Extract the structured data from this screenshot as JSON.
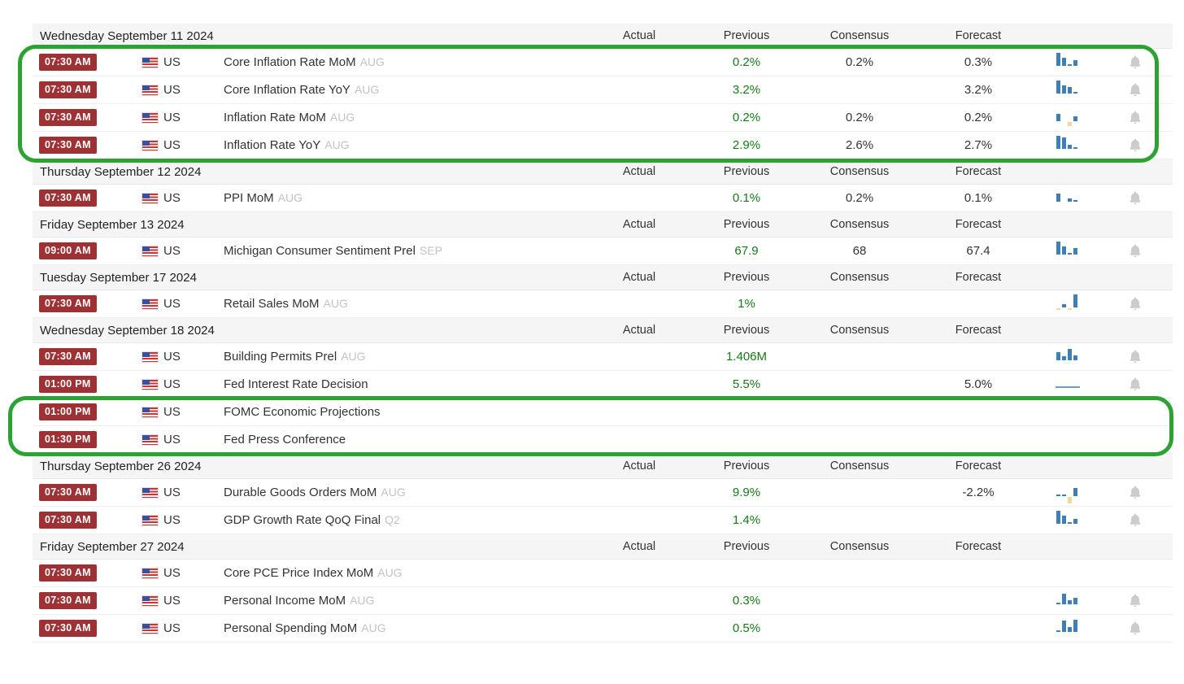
{
  "columns": {
    "actual": "Actual",
    "previous": "Previous",
    "consensus": "Consensus",
    "forecast": "Forecast"
  },
  "colors": {
    "badge_red": "#9e3134",
    "previous_green": "#157a15",
    "bar_blue": "#3e7fb8",
    "bar_yellow": "#f5d79e",
    "highlight_green": "#2ca233",
    "bell_gray": "#cccccc"
  },
  "icons": {
    "bell": "alert-bell-icon",
    "flag": "us-flag-icon",
    "spark": "history-sparkline-chart"
  },
  "groups": [
    {
      "date": "Wednesday September 11 2024",
      "events": [
        {
          "time": "07:30 AM",
          "country": "US",
          "name": "Core Inflation Rate MoM",
          "period": "AUG",
          "actual": "",
          "previous": "0.2%",
          "consensus": "0.2%",
          "forecast": "0.3%",
          "bell": true,
          "chart": [
            {
              "v": 1
            },
            {
              "v": 0.65
            },
            {
              "v": 0.15
            },
            {
              "v": 0.45
            }
          ]
        },
        {
          "time": "07:30 AM",
          "country": "US",
          "name": "Core Inflation Rate YoY",
          "period": "AUG",
          "actual": "",
          "previous": "3.2%",
          "consensus": "",
          "forecast": "3.2%",
          "bell": true,
          "chart": [
            {
              "v": 1
            },
            {
              "v": 0.6
            },
            {
              "v": 0.5
            },
            {
              "v": 0.15
            }
          ]
        },
        {
          "time": "07:30 AM",
          "country": "US",
          "name": "Inflation Rate MoM",
          "period": "AUG",
          "actual": "",
          "previous": "0.2%",
          "consensus": "0.2%",
          "forecast": "0.2%",
          "bell": true,
          "chart": [
            {
              "v": 0.55
            },
            {
              "v": 0
            },
            {
              "v": -0.3,
              "c": "y"
            },
            {
              "v": 0.35
            }
          ]
        },
        {
          "time": "07:30 AM",
          "country": "US",
          "name": "Inflation Rate YoY",
          "period": "AUG",
          "actual": "",
          "previous": "2.9%",
          "consensus": "2.6%",
          "forecast": "2.7%",
          "bell": true,
          "chart": [
            {
              "v": 1
            },
            {
              "v": 0.9
            },
            {
              "v": 0.3
            },
            {
              "v": 0.12
            }
          ]
        }
      ]
    },
    {
      "date": "Thursday September 12 2024",
      "events": [
        {
          "time": "07:30 AM",
          "country": "US",
          "name": "PPI MoM",
          "period": "AUG",
          "actual": "",
          "previous": "0.1%",
          "consensus": "0.2%",
          "forecast": "0.1%",
          "bell": true,
          "chart": [
            {
              "v": 0.6
            },
            {
              "v": 0
            },
            {
              "v": 0.22
            },
            {
              "v": 0.1
            }
          ]
        }
      ]
    },
    {
      "date": "Friday September 13 2024",
      "events": [
        {
          "time": "09:00 AM",
          "country": "US",
          "name": "Michigan Consumer Sentiment Prel",
          "period": "SEP",
          "actual": "",
          "previous": "67.9",
          "consensus": "68",
          "forecast": "67.4",
          "bell": true,
          "chart": [
            {
              "v": 1
            },
            {
              "v": 0.6
            },
            {
              "v": 0.12
            },
            {
              "v": 0.5
            }
          ]
        }
      ]
    },
    {
      "date": "Tuesday September 17 2024",
      "events": [
        {
          "time": "07:30 AM",
          "country": "US",
          "name": "Retail Sales MoM",
          "period": "AUG",
          "actual": "",
          "previous": "1%",
          "consensus": "",
          "forecast": "",
          "bell": true,
          "chart": [
            {
              "v": -0.12,
              "c": "y"
            },
            {
              "v": 0.25
            },
            {
              "v": -0.12,
              "c": "y"
            },
            {
              "v": 1
            }
          ]
        }
      ]
    },
    {
      "date": "Wednesday September 18 2024",
      "events": [
        {
          "time": "07:30 AM",
          "country": "US",
          "name": "Building Permits Prel",
          "period": "AUG",
          "actual": "",
          "previous": "1.406M",
          "consensus": "",
          "forecast": "",
          "bell": true,
          "chart": [
            {
              "v": 0.6
            },
            {
              "v": 0.3
            },
            {
              "v": 0.85
            },
            {
              "v": 0.35
            }
          ]
        },
        {
          "time": "01:00 PM",
          "country": "US",
          "name": "Fed Interest Rate Decision",
          "period": "",
          "actual": "",
          "previous": "5.5%",
          "consensus": "",
          "forecast": "5.0%",
          "bell": true,
          "chart": [
            {
              "v": 0.12,
              "wide": true
            }
          ]
        },
        {
          "time": "01:00 PM",
          "country": "US",
          "name": "FOMC Economic Projections",
          "period": "",
          "actual": "",
          "previous": "",
          "consensus": "",
          "forecast": "",
          "bell": false,
          "chart": []
        },
        {
          "time": "01:30 PM",
          "country": "US",
          "name": "Fed Press Conference",
          "period": "",
          "actual": "",
          "previous": "",
          "consensus": "",
          "forecast": "",
          "bell": false,
          "chart": []
        }
      ]
    },
    {
      "date": "Thursday September 26 2024",
      "events": [
        {
          "time": "07:30 AM",
          "country": "US",
          "name": "Durable Goods Orders MoM",
          "period": "AUG",
          "actual": "",
          "previous": "9.9%",
          "consensus": "",
          "forecast": "-2.2%",
          "bell": true,
          "chart": [
            {
              "v": 0.1
            },
            {
              "v": 0.1
            },
            {
              "v": -0.5,
              "c": "y"
            },
            {
              "v": 0.6
            }
          ]
        },
        {
          "time": "07:30 AM",
          "country": "US",
          "name": "GDP Growth Rate QoQ Final",
          "period": "Q2",
          "actual": "",
          "previous": "1.4%",
          "consensus": "",
          "forecast": "",
          "bell": true,
          "chart": [
            {
              "v": 1
            },
            {
              "v": 0.6
            },
            {
              "v": 0.1
            },
            {
              "v": 0.35
            }
          ]
        }
      ]
    },
    {
      "date": "Friday September 27 2024",
      "events": [
        {
          "time": "07:30 AM",
          "country": "US",
          "name": "Core PCE Price Index MoM",
          "period": "AUG",
          "actual": "",
          "previous": "",
          "consensus": "",
          "forecast": "",
          "bell": false,
          "chart": []
        },
        {
          "time": "07:30 AM",
          "country": "US",
          "name": "Personal Income MoM",
          "period": "AUG",
          "actual": "",
          "previous": "0.3%",
          "consensus": "",
          "forecast": "",
          "bell": true,
          "chart": [
            {
              "v": 0.12
            },
            {
              "v": 0.8
            },
            {
              "v": 0.3
            },
            {
              "v": 0.5
            }
          ]
        },
        {
          "time": "07:30 AM",
          "country": "US",
          "name": "Personal Spending MoM",
          "period": "AUG",
          "actual": "",
          "previous": "0.5%",
          "consensus": "",
          "forecast": "",
          "bell": true,
          "chart": [
            {
              "v": 0.12
            },
            {
              "v": 0.9
            },
            {
              "v": 0.35
            },
            {
              "v": 0.95
            }
          ]
        }
      ]
    }
  ],
  "annotations": [
    {
      "label": "highlight-inflation-rows"
    },
    {
      "label": "highlight-fomc-rows"
    }
  ]
}
